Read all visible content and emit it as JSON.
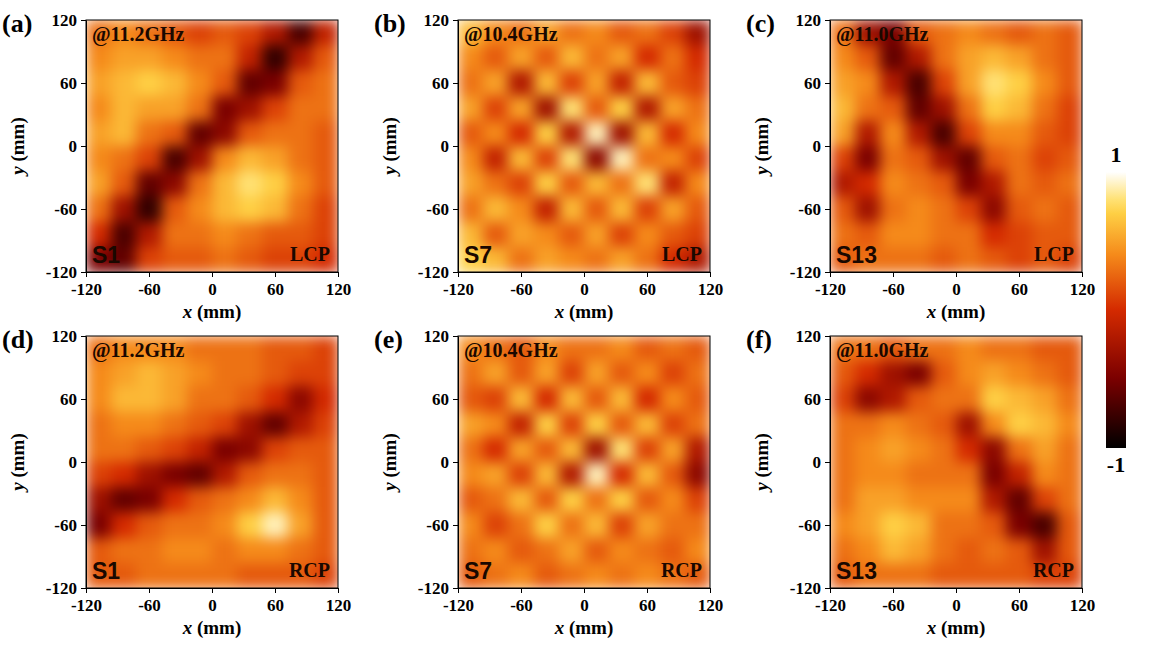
{
  "chart_data": [
    {
      "type": "heatmap",
      "panel_label": "(a)",
      "frequency_label": "@11.2GHz",
      "sample_label": "S1",
      "polarization": "LCP",
      "xlabel": "x (mm)",
      "ylabel": "y (mm)",
      "xlim": [
        -120,
        120
      ],
      "ylim": [
        -120,
        120
      ],
      "xticks": [
        -120,
        -60,
        0,
        60,
        120
      ],
      "yticks": [
        -120,
        -60,
        0,
        60,
        120
      ],
      "x": [
        -108,
        -84,
        -60,
        -36,
        -12,
        12,
        36,
        60,
        84,
        108
      ],
      "y": [
        108,
        84,
        60,
        36,
        12,
        -12,
        -36,
        -60,
        -84,
        -108
      ],
      "z": [
        [
          0.3,
          0.4,
          0.3,
          0.2,
          0.1,
          0.2,
          0.1,
          -0.2,
          -0.7,
          -0.1
        ],
        [
          0.4,
          0.5,
          0.5,
          0.4,
          0.3,
          0.3,
          -0.1,
          -0.8,
          -0.2,
          0.2
        ],
        [
          0.5,
          0.6,
          0.7,
          0.6,
          0.4,
          0.2,
          -0.6,
          -0.5,
          0.2,
          0.3
        ],
        [
          0.4,
          0.6,
          0.5,
          0.5,
          0.3,
          -0.5,
          -0.3,
          0.1,
          0.3,
          0.3
        ],
        [
          0.5,
          0.6,
          0.3,
          0.2,
          -0.6,
          -0.4,
          0.2,
          0.3,
          0.3,
          0.2
        ],
        [
          0.4,
          0.3,
          0.1,
          -0.7,
          -0.3,
          0.4,
          0.6,
          0.5,
          0.3,
          0.2
        ],
        [
          0.5,
          0.2,
          -0.6,
          -0.4,
          0.3,
          0.6,
          0.8,
          0.7,
          0.4,
          0.2
        ],
        [
          0.3,
          -0.3,
          -0.8,
          0.2,
          0.4,
          0.6,
          0.7,
          0.6,
          0.3,
          0.1
        ],
        [
          0.0,
          -0.7,
          -0.2,
          0.3,
          0.3,
          0.4,
          0.3,
          0.2,
          0.2,
          0.1
        ],
        [
          -0.5,
          -0.6,
          0.1,
          0.2,
          0.2,
          0.3,
          0.2,
          0.1,
          0.1,
          0.0
        ]
      ]
    },
    {
      "type": "heatmap",
      "panel_label": "(b)",
      "frequency_label": "@10.4GHz",
      "sample_label": "S7",
      "polarization": "LCP",
      "xlabel": "x (mm)",
      "ylabel": "y (mm)",
      "xlim": [
        -120,
        120
      ],
      "ylim": [
        -120,
        120
      ],
      "xticks": [
        -120,
        -60,
        0,
        60,
        120
      ],
      "yticks": [
        -120,
        -60,
        0,
        60,
        120
      ],
      "x": [
        -108,
        -84,
        -60,
        -36,
        -12,
        12,
        36,
        60,
        84,
        108
      ],
      "y": [
        108,
        84,
        60,
        36,
        12,
        -12,
        -36,
        -60,
        -84,
        -108
      ],
      "z": [
        [
          0.6,
          0.4,
          0.3,
          0.5,
          0.3,
          0.4,
          0.2,
          0.3,
          0.1,
          -0.3
        ],
        [
          0.4,
          0.2,
          0.5,
          0.2,
          0.6,
          0.3,
          0.5,
          0.0,
          0.3,
          0.0
        ],
        [
          0.3,
          0.5,
          -0.2,
          0.6,
          0.1,
          0.5,
          -0.1,
          0.6,
          0.2,
          0.1
        ],
        [
          0.5,
          0.1,
          0.5,
          -0.3,
          0.8,
          0.2,
          0.7,
          -0.2,
          0.5,
          0.3
        ],
        [
          0.2,
          0.4,
          0.0,
          0.7,
          -0.2,
          0.9,
          -0.3,
          0.6,
          0.0,
          0.4
        ],
        [
          0.4,
          -0.1,
          0.6,
          0.1,
          0.8,
          -0.4,
          0.9,
          0.3,
          0.4,
          0.1
        ],
        [
          0.5,
          0.3,
          0.1,
          0.7,
          0.2,
          0.6,
          0.3,
          0.8,
          -0.1,
          0.4
        ],
        [
          0.3,
          0.6,
          0.4,
          -0.1,
          0.6,
          0.2,
          0.6,
          0.1,
          0.5,
          0.2
        ],
        [
          0.6,
          0.2,
          0.5,
          0.4,
          0.2,
          0.5,
          0.1,
          0.4,
          0.2,
          0.1
        ],
        [
          0.7,
          0.6,
          0.3,
          0.5,
          0.4,
          0.3,
          0.5,
          0.3,
          0.0,
          -0.2
        ]
      ]
    },
    {
      "type": "heatmap",
      "panel_label": "(c)",
      "frequency_label": "@11.0GHz",
      "sample_label": "S13",
      "polarization": "LCP",
      "xlabel": "x (mm)",
      "ylabel": "y (mm)",
      "xlim": [
        -120,
        120
      ],
      "ylim": [
        -120,
        120
      ],
      "xticks": [
        -120,
        -60,
        0,
        60,
        120
      ],
      "yticks": [
        -120,
        -60,
        0,
        60,
        120
      ],
      "x": [
        -108,
        -84,
        -60,
        -36,
        -12,
        12,
        36,
        60,
        84,
        108
      ],
      "y": [
        108,
        84,
        60,
        36,
        12,
        -12,
        -36,
        -60,
        -84,
        -108
      ],
      "z": [
        [
          0.3,
          -0.3,
          -0.5,
          0.2,
          0.3,
          0.4,
          0.3,
          0.2,
          0.3,
          0.2
        ],
        [
          0.4,
          0.2,
          -0.6,
          -0.2,
          0.3,
          0.5,
          0.6,
          0.5,
          0.3,
          0.2
        ],
        [
          0.5,
          0.4,
          -0.2,
          -0.7,
          0.1,
          0.5,
          0.8,
          0.7,
          0.4,
          0.2
        ],
        [
          0.6,
          0.3,
          0.2,
          -0.6,
          -0.3,
          0.3,
          0.7,
          0.6,
          0.3,
          0.1
        ],
        [
          0.5,
          -0.2,
          0.4,
          -0.2,
          -0.7,
          0.1,
          0.4,
          0.4,
          0.2,
          0.1
        ],
        [
          0.1,
          -0.5,
          0.3,
          0.2,
          -0.3,
          -0.6,
          0.2,
          0.3,
          0.1,
          0.2
        ],
        [
          -0.2,
          0.0,
          0.4,
          0.3,
          0.2,
          -0.5,
          -0.2,
          0.3,
          0.2,
          0.3
        ],
        [
          0.2,
          -0.3,
          0.3,
          0.4,
          0.3,
          0.1,
          -0.4,
          0.2,
          0.3,
          0.2
        ],
        [
          0.3,
          0.2,
          0.4,
          0.4,
          0.3,
          0.3,
          0.0,
          0.1,
          0.2,
          0.2
        ],
        [
          0.2,
          0.3,
          0.3,
          0.3,
          0.2,
          0.3,
          0.2,
          0.1,
          0.2,
          0.1
        ]
      ]
    },
    {
      "type": "heatmap",
      "panel_label": "(d)",
      "frequency_label": "@11.2GHz",
      "sample_label": "S1",
      "polarization": "RCP",
      "xlabel": "x (mm)",
      "ylabel": "y (mm)",
      "xlim": [
        -120,
        120
      ],
      "ylim": [
        -120,
        120
      ],
      "xticks": [
        -120,
        -60,
        0,
        60,
        120
      ],
      "yticks": [
        -120,
        -60,
        0,
        60,
        120
      ],
      "x": [
        -108,
        -84,
        -60,
        -36,
        -12,
        12,
        36,
        60,
        84,
        108
      ],
      "y": [
        108,
        84,
        60,
        36,
        12,
        -12,
        -36,
        -60,
        -84,
        -108
      ],
      "z": [
        [
          0.3,
          0.4,
          0.4,
          0.4,
          0.3,
          0.3,
          0.3,
          0.2,
          0.2,
          0.1
        ],
        [
          0.4,
          0.5,
          0.6,
          0.5,
          0.4,
          0.3,
          0.3,
          0.2,
          0.1,
          0.1
        ],
        [
          0.4,
          0.6,
          0.6,
          0.5,
          0.3,
          0.3,
          0.2,
          0.0,
          -0.4,
          0.0
        ],
        [
          0.3,
          0.4,
          0.4,
          0.3,
          0.2,
          0.1,
          -0.3,
          -0.6,
          -0.2,
          0.1
        ],
        [
          0.3,
          0.3,
          0.2,
          0.1,
          -0.1,
          -0.5,
          -0.4,
          0.1,
          0.2,
          0.2
        ],
        [
          0.1,
          0.0,
          -0.3,
          -0.5,
          -0.6,
          -0.2,
          0.2,
          0.3,
          0.3,
          0.2
        ],
        [
          -0.3,
          -0.6,
          -0.5,
          0.0,
          0.2,
          0.3,
          0.4,
          0.6,
          0.4,
          0.2
        ],
        [
          -0.5,
          0.0,
          0.2,
          0.3,
          0.3,
          0.4,
          0.7,
          0.9,
          0.5,
          0.2
        ],
        [
          0.2,
          0.3,
          0.3,
          0.4,
          0.4,
          0.3,
          0.4,
          0.4,
          0.3,
          0.2
        ],
        [
          0.2,
          0.2,
          0.3,
          0.3,
          0.3,
          0.3,
          0.2,
          0.2,
          0.2,
          0.1
        ]
      ]
    },
    {
      "type": "heatmap",
      "panel_label": "(e)",
      "frequency_label": "@10.4GHz",
      "sample_label": "S7",
      "polarization": "RCP",
      "xlabel": "x (mm)",
      "ylabel": "y (mm)",
      "xlim": [
        -120,
        120
      ],
      "ylim": [
        -120,
        120
      ],
      "xticks": [
        -120,
        -60,
        0,
        60,
        120
      ],
      "yticks": [
        -120,
        -60,
        0,
        60,
        120
      ],
      "x": [
        -108,
        -84,
        -60,
        -36,
        -12,
        12,
        36,
        60,
        84,
        108
      ],
      "y": [
        108,
        84,
        60,
        36,
        12,
        -12,
        -36,
        -60,
        -84,
        -108
      ],
      "z": [
        [
          0.4,
          0.3,
          0.2,
          0.4,
          0.3,
          0.3,
          0.4,
          0.2,
          0.3,
          0.2
        ],
        [
          0.3,
          0.5,
          0.2,
          0.5,
          0.1,
          0.5,
          0.2,
          0.4,
          0.1,
          0.3
        ],
        [
          0.2,
          0.1,
          0.6,
          0.0,
          0.6,
          0.2,
          0.6,
          0.0,
          0.4,
          0.2
        ],
        [
          0.5,
          0.4,
          -0.1,
          0.7,
          0.1,
          0.7,
          0.2,
          0.6,
          0.1,
          0.3
        ],
        [
          0.3,
          0.0,
          0.5,
          0.2,
          0.6,
          -0.3,
          0.8,
          0.1,
          0.5,
          -0.2
        ],
        [
          0.4,
          0.5,
          0.1,
          0.6,
          -0.2,
          0.9,
          0.0,
          0.6,
          0.2,
          -0.4
        ],
        [
          0.2,
          0.3,
          0.6,
          0.2,
          0.7,
          0.3,
          0.7,
          0.2,
          0.4,
          0.1
        ],
        [
          0.4,
          0.1,
          0.3,
          0.7,
          0.3,
          0.6,
          0.1,
          0.5,
          0.3,
          0.3
        ],
        [
          0.3,
          0.4,
          0.2,
          0.3,
          0.5,
          0.2,
          0.4,
          0.3,
          0.2,
          0.4
        ],
        [
          0.2,
          0.3,
          0.4,
          0.2,
          0.3,
          0.4,
          0.3,
          0.4,
          0.3,
          0.2
        ]
      ]
    },
    {
      "type": "heatmap",
      "panel_label": "(f)",
      "frequency_label": "@11.0GHz",
      "sample_label": "S13",
      "polarization": "RCP",
      "xlabel": "x (mm)",
      "ylabel": "y (mm)",
      "xlim": [
        -120,
        120
      ],
      "ylim": [
        -120,
        120
      ],
      "xticks": [
        -120,
        -60,
        0,
        60,
        120
      ],
      "yticks": [
        -120,
        -60,
        0,
        60,
        120
      ],
      "x": [
        -108,
        -84,
        -60,
        -36,
        -12,
        12,
        36,
        60,
        84,
        108
      ],
      "y": [
        108,
        84,
        60,
        36,
        12,
        -12,
        -36,
        -60,
        -84,
        -108
      ],
      "z": [
        [
          0.3,
          0.3,
          0.2,
          0.3,
          0.3,
          0.4,
          0.3,
          0.3,
          0.2,
          0.2
        ],
        [
          0.2,
          0.0,
          -0.3,
          -0.5,
          0.2,
          0.4,
          0.5,
          0.4,
          0.3,
          0.2
        ],
        [
          0.1,
          -0.4,
          -0.2,
          0.2,
          0.3,
          0.3,
          0.7,
          0.6,
          0.5,
          0.3
        ],
        [
          0.3,
          0.3,
          0.4,
          0.3,
          0.2,
          -0.3,
          0.4,
          0.7,
          0.6,
          0.4
        ],
        [
          0.3,
          0.4,
          0.5,
          0.4,
          0.3,
          0.0,
          -0.4,
          0.3,
          0.5,
          0.3
        ],
        [
          0.3,
          0.4,
          0.4,
          0.3,
          0.3,
          0.3,
          -0.5,
          -0.1,
          0.4,
          0.3
        ],
        [
          0.3,
          0.5,
          0.5,
          0.4,
          0.4,
          0.4,
          -0.2,
          -0.6,
          0.1,
          0.3
        ],
        [
          0.4,
          0.5,
          0.7,
          0.6,
          0.3,
          0.3,
          0.2,
          -0.5,
          -0.7,
          0.2
        ],
        [
          0.3,
          0.4,
          0.6,
          0.5,
          0.3,
          0.2,
          0.3,
          0.2,
          -0.3,
          0.2
        ],
        [
          0.2,
          0.3,
          0.3,
          0.3,
          0.2,
          0.2,
          0.2,
          0.2,
          0.1,
          0.1
        ]
      ]
    }
  ],
  "colorbar": {
    "range": [
      -1,
      1
    ],
    "ticks": [
      -1,
      1
    ]
  }
}
